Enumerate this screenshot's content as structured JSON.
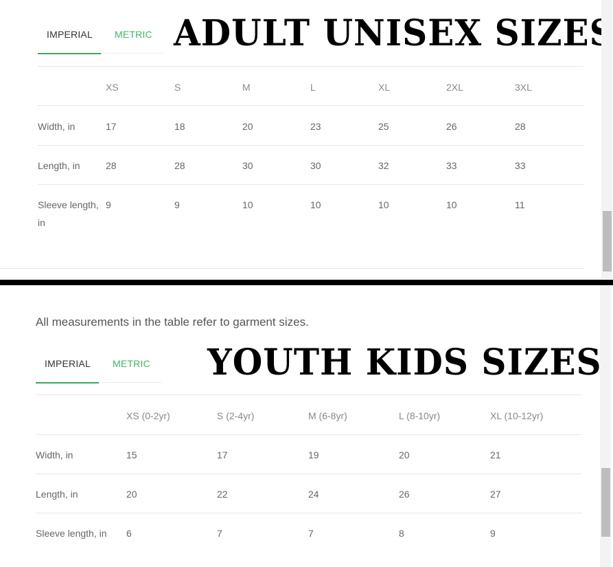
{
  "adult": {
    "tabs": {
      "imperial": "IMPERIAL",
      "metric": "METRIC"
    },
    "title": "ADULT UNISEX SIZES",
    "headers": [
      "XS",
      "S",
      "M",
      "L",
      "XL",
      "2XL",
      "3XL"
    ],
    "rows": [
      {
        "label": "Width, in",
        "values": [
          "17",
          "18",
          "20",
          "23",
          "25",
          "26",
          "28"
        ]
      },
      {
        "label": "Length, in",
        "values": [
          "28",
          "28",
          "30",
          "30",
          "32",
          "33",
          "33"
        ]
      },
      {
        "label": "Sleeve length,\nin",
        "values": [
          "9",
          "9",
          "10",
          "10",
          "10",
          "10",
          "11"
        ]
      }
    ]
  },
  "youth": {
    "note": "All measurements in the table refer to garment sizes.",
    "tabs": {
      "imperial": "IMPERIAL",
      "metric": "METRIC"
    },
    "title": "YOUTH KIDS SIZES",
    "headers": [
      "XS (0-2yr)",
      "S (2-4yr)",
      "M (6-8yr)",
      "L (8-10yr)",
      "XL (10-12yr)"
    ],
    "rows": [
      {
        "label": "Width, in",
        "values": [
          "15",
          "17",
          "19",
          "20",
          "21"
        ]
      },
      {
        "label": "Length, in",
        "values": [
          "20",
          "22",
          "24",
          "26",
          "27"
        ]
      },
      {
        "label": "Sleeve length, in",
        "values": [
          "6",
          "7",
          "7",
          "8",
          "9"
        ]
      }
    ]
  },
  "colors": {
    "accent": "#3fb862",
    "divider": "#000000"
  }
}
